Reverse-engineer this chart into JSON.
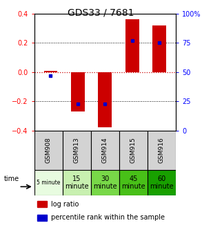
{
  "title": "GDS33 / 7681",
  "samples": [
    "GSM908",
    "GSM913",
    "GSM914",
    "GSM915",
    "GSM916"
  ],
  "time_labels_line1": [
    "5 minute",
    "15",
    "30",
    "45",
    "60"
  ],
  "time_labels_line2": [
    "",
    "minute",
    "minute",
    "minute",
    "minute"
  ],
  "time_colors": [
    "#e8fce0",
    "#c8f0b0",
    "#78d848",
    "#48c018",
    "#18a000"
  ],
  "log_ratios": [
    0.01,
    -0.27,
    -0.38,
    0.36,
    0.32
  ],
  "percentile_ranks": [
    47,
    23,
    23,
    77,
    75
  ],
  "ylim_left": [
    -0.4,
    0.4
  ],
  "ylim_right": [
    0,
    100
  ],
  "bar_color": "#cc0000",
  "percentile_color": "#0000cc",
  "title_fontsize": 10,
  "bar_width": 0.5
}
